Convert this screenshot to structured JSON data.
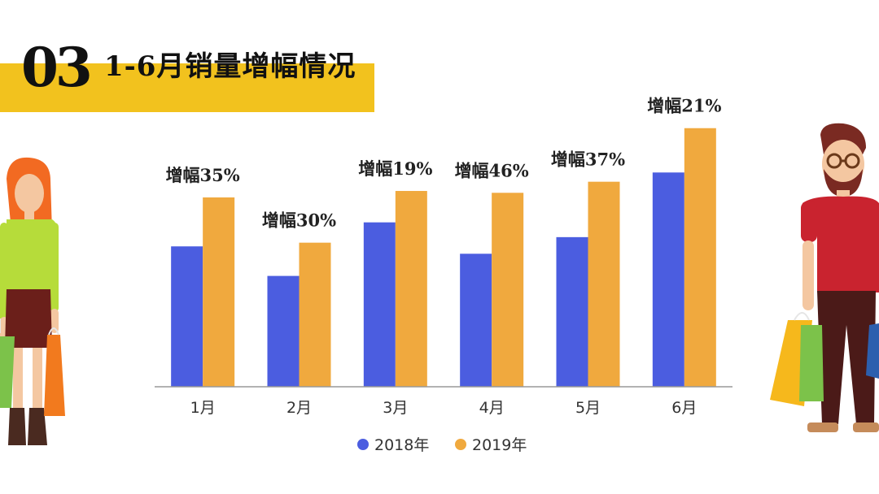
{
  "header": {
    "number": "03",
    "title": "1-6月销量增幅情况"
  },
  "colors": {
    "accent": "#f2c21e",
    "series_2018": "#4b5de0",
    "series_2019": "#f0a93e"
  },
  "chart_data": {
    "type": "bar",
    "categories": [
      "1月",
      "2月",
      "3月",
      "4月",
      "5月",
      "6月"
    ],
    "series": [
      {
        "name": "2018年",
        "values": [
          152,
          120,
          178,
          144,
          162,
          232
        ]
      },
      {
        "name": "2019年",
        "values": [
          205,
          156,
          212,
          210,
          222,
          280
        ]
      }
    ],
    "annotations": [
      "增幅35%",
      "增幅30%",
      "增幅19%",
      "增幅46%",
      "增幅37%",
      "增幅21%"
    ],
    "ylim": [
      0,
      300
    ],
    "grid": false,
    "legend_position": "bottom"
  }
}
